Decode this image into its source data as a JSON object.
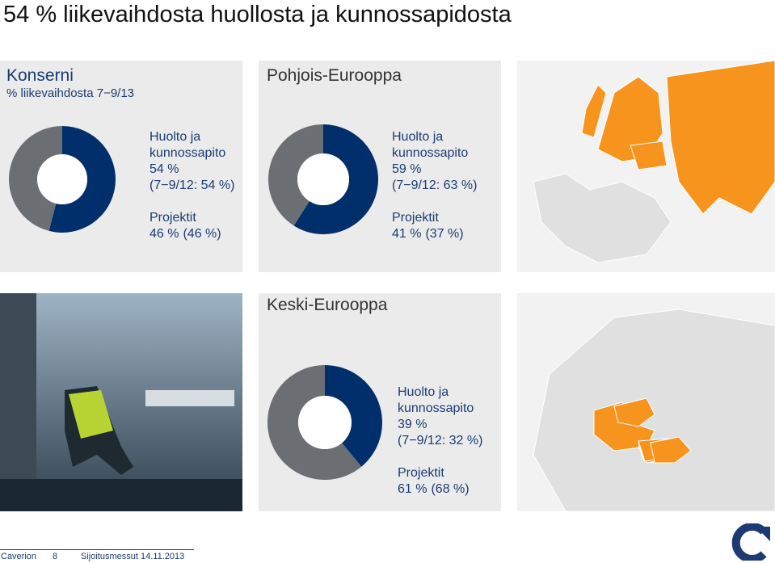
{
  "title": "54 % liikevaihdosta huollosta ja kunnossapidosta",
  "chart_data": [
    {
      "type": "donut",
      "title": "Konserni",
      "subtitle": "% liikevaihdosta 7−9/13",
      "categories": [
        "Huolto ja kunnossapito",
        "Projektit"
      ],
      "values": [
        54,
        46
      ],
      "value_labels": [
        "54 %",
        "46 %"
      ],
      "comparison_labels": [
        "(7−9/12: 54 %)",
        "(46 %)"
      ],
      "colors": [
        "#002f6c",
        "#6b6f74"
      ]
    },
    {
      "type": "donut",
      "title": "Pohjois-Eurooppa",
      "categories": [
        "Huolto ja kunnossapito",
        "Projektit"
      ],
      "values": [
        59,
        41
      ],
      "value_labels": [
        "59 %",
        "41 %"
      ],
      "comparison_labels": [
        "(7−9/12: 63 %)",
        "(37 %)"
      ],
      "colors": [
        "#002f6c",
        "#6b6f74"
      ]
    },
    {
      "type": "donut",
      "title": "Keski-Eurooppa",
      "categories": [
        "Huolto ja kunnossapito",
        "Projektit"
      ],
      "values": [
        39,
        61
      ],
      "value_labels": [
        "39 %",
        "61 %"
      ],
      "comparison_labels": [
        "(7−9/12: 32 %)",
        "(68 %)"
      ],
      "colors": [
        "#002f6c",
        "#6b6f74"
      ]
    }
  ],
  "footer": {
    "company": "Caverion",
    "page": "8",
    "event": "Sijoitusmessut 14.11.2013"
  }
}
